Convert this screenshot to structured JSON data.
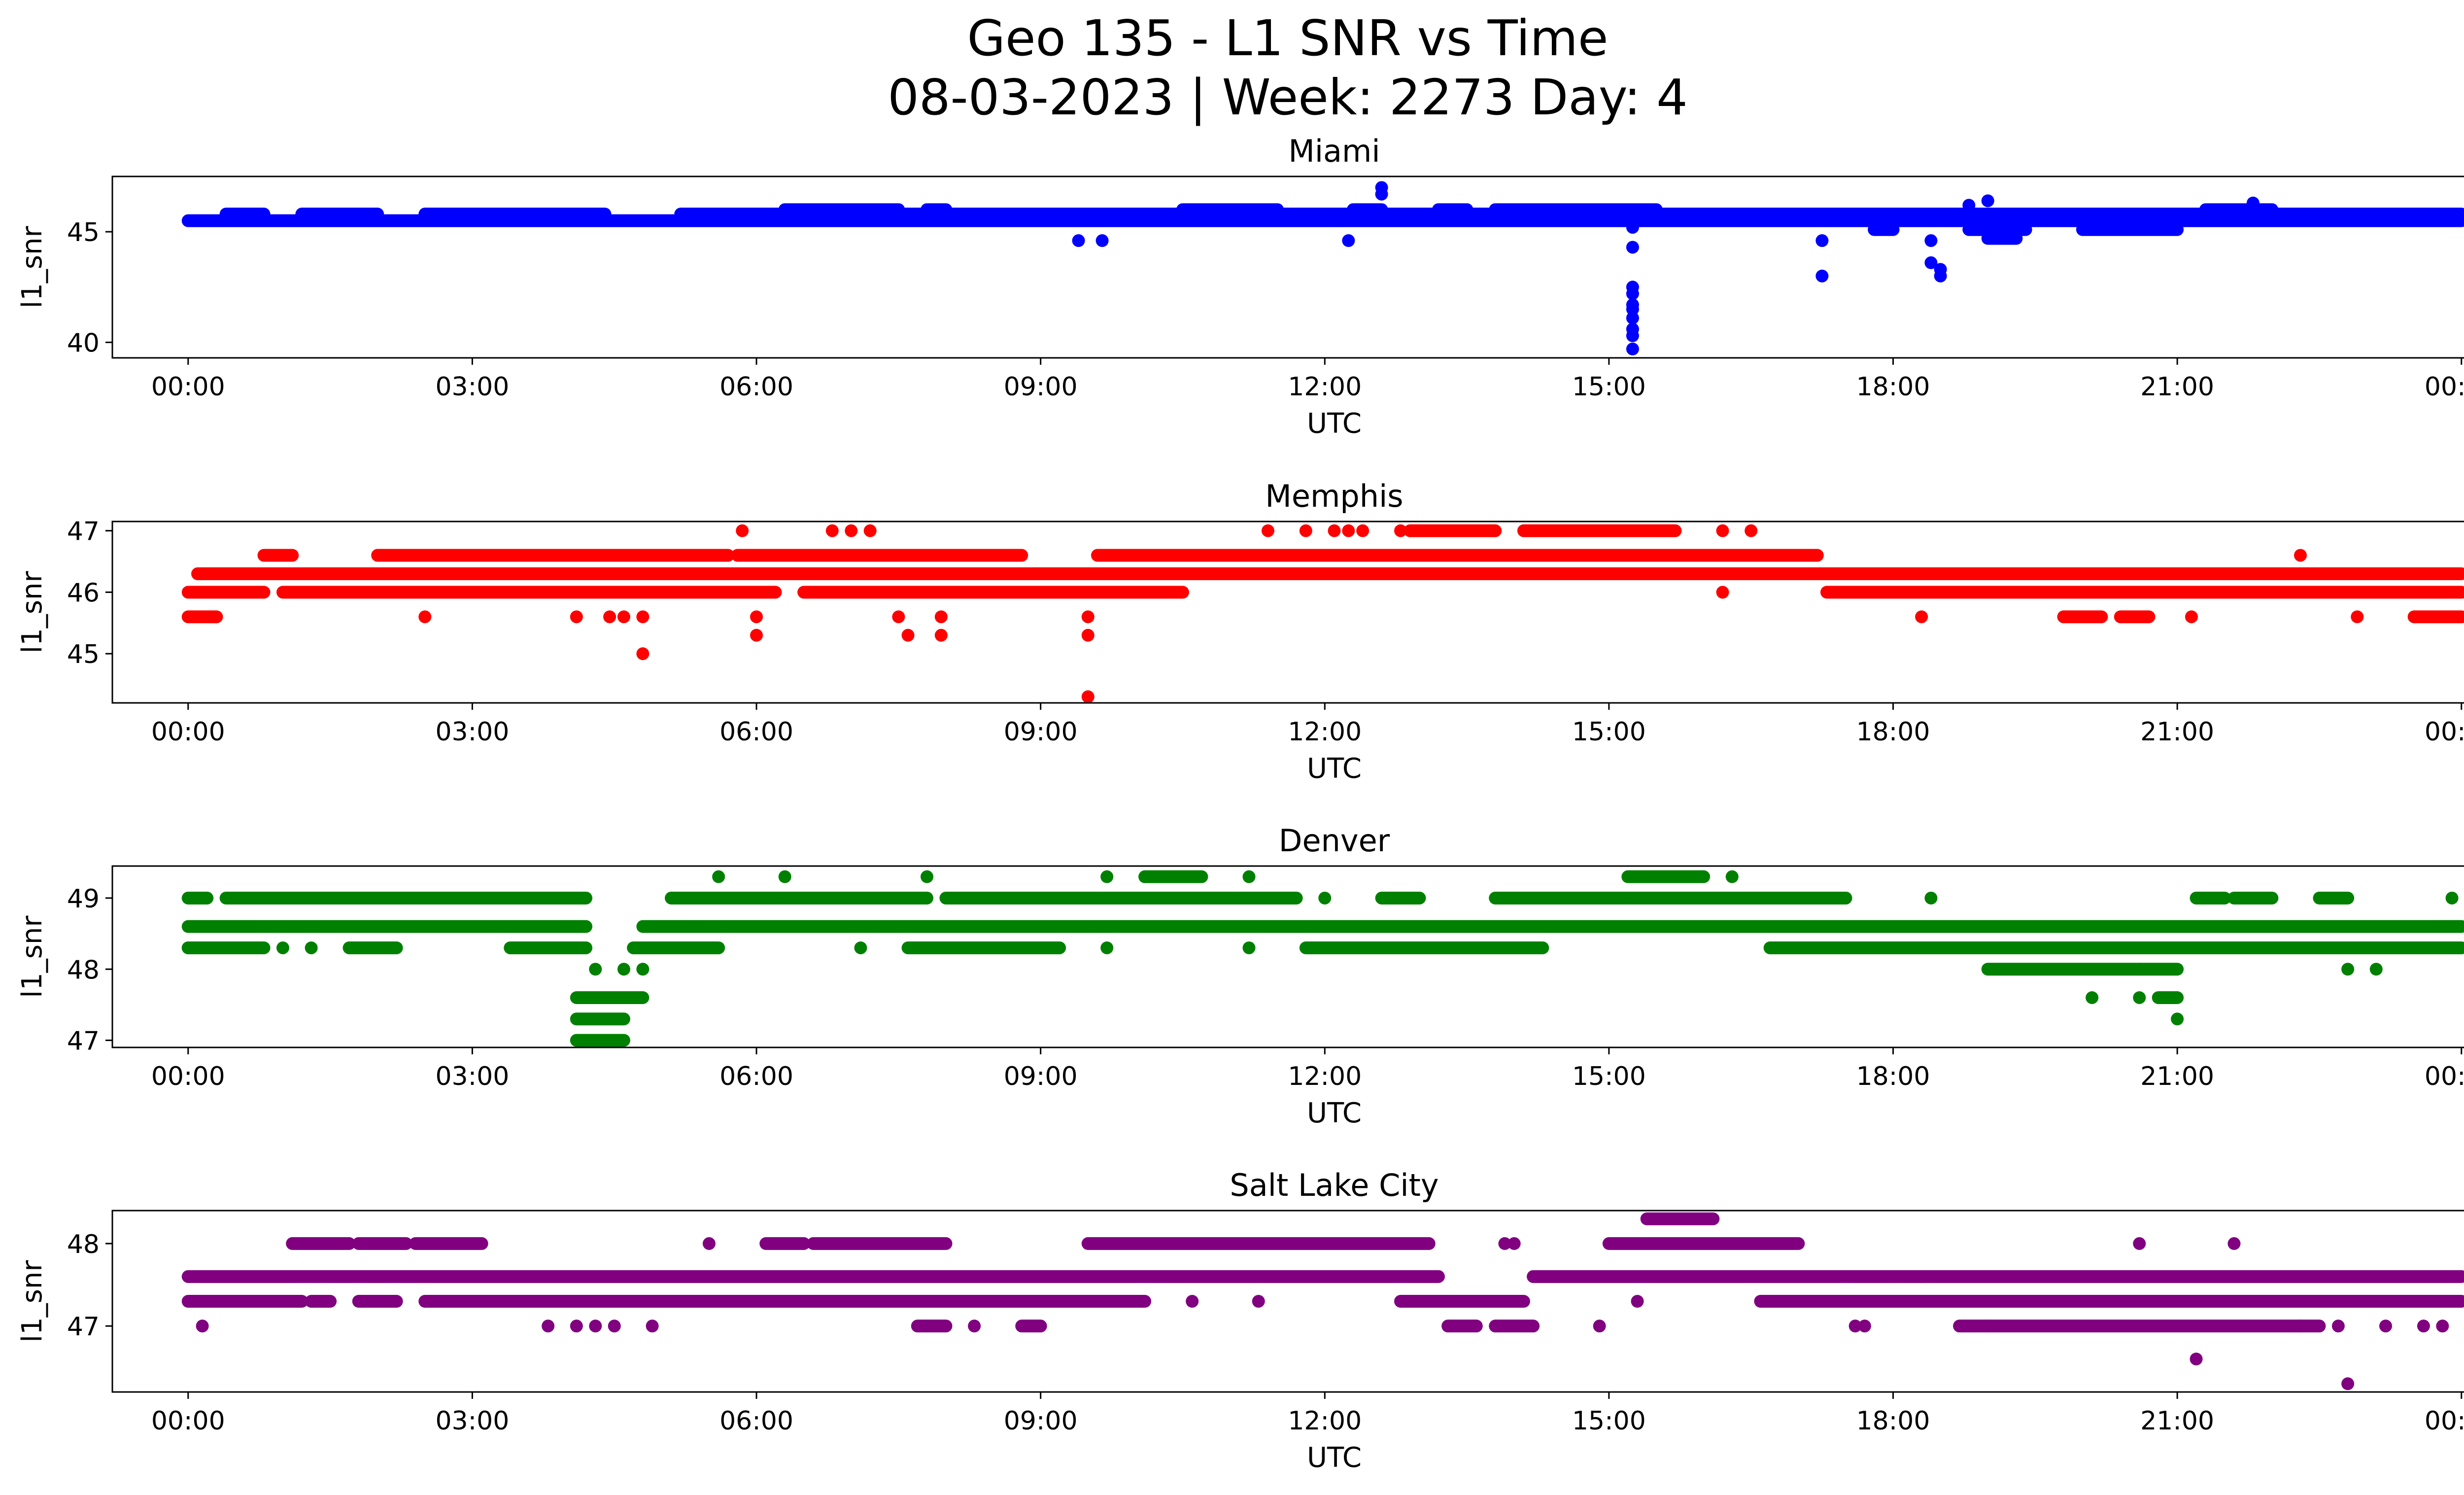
{
  "title": "Geo 135 - L1 SNR vs Time",
  "subtitle": "08-03-2023 | Week: 2273 Day: 4",
  "chart_data": [
    {
      "type": "scatter",
      "title": "Miami",
      "xlabel": "UTC",
      "ylabel": "l1_snr",
      "color": "#0000ff",
      "xlim": [
        -0.8,
        25.0
      ],
      "ylim": [
        39.3,
        47.5
      ],
      "xticks": [
        "00:00",
        "03:00",
        "06:00",
        "09:00",
        "12:00",
        "15:00",
        "18:00",
        "21:00",
        "00:00"
      ],
      "yticks": [
        40,
        45
      ],
      "bands": [
        {
          "level": 45.5,
          "segments": [
            [
              0.0,
              24.0
            ]
          ]
        },
        {
          "level": 45.8,
          "segments": [
            [
              0.4,
              0.8
            ],
            [
              1.2,
              2.0
            ],
            [
              2.5,
              4.4
            ],
            [
              5.2,
              24.0
            ]
          ]
        },
        {
          "level": 46.0,
          "segments": [
            [
              6.3,
              7.5
            ],
            [
              7.8,
              8.0
            ],
            [
              10.5,
              11.5
            ],
            [
              12.3,
              12.6
            ],
            [
              13.2,
              13.5
            ],
            [
              13.8,
              15.5
            ],
            [
              21.3,
              22.0
            ]
          ]
        },
        {
          "level": 45.1,
          "segments": [
            [
              17.8,
              18.0
            ],
            [
              18.8,
              19.4
            ],
            [
              20.0,
              21.0
            ]
          ]
        },
        {
          "level": 44.7,
          "segments": [
            [
              19.0,
              19.3
            ]
          ]
        }
      ],
      "points": [
        [
          15.25,
          39.7
        ],
        [
          15.25,
          40.3
        ],
        [
          15.25,
          40.6
        ],
        [
          15.25,
          41.1
        ],
        [
          15.25,
          41.5
        ],
        [
          15.25,
          41.7
        ],
        [
          15.25,
          42.2
        ],
        [
          15.25,
          42.5
        ],
        [
          15.25,
          44.3
        ],
        [
          15.25,
          45.2
        ],
        [
          9.4,
          44.6
        ],
        [
          9.65,
          44.6
        ],
        [
          12.25,
          44.6
        ],
        [
          12.6,
          46.7
        ],
        [
          12.6,
          47.0
        ],
        [
          17.25,
          44.6
        ],
        [
          17.25,
          43.0
        ],
        [
          18.4,
          44.6
        ],
        [
          18.4,
          43.6
        ],
        [
          18.5,
          43.3
        ],
        [
          18.5,
          43.0
        ],
        [
          18.8,
          46.2
        ],
        [
          19.0,
          46.4
        ],
        [
          21.8,
          46.3
        ]
      ]
    },
    {
      "type": "scatter",
      "title": "Memphis",
      "xlabel": "UTC",
      "ylabel": "l1_snr",
      "color": "#ff0000",
      "xlim": [
        -0.8,
        25.0
      ],
      "ylim": [
        44.2,
        47.15
      ],
      "xticks": [
        "00:00",
        "03:00",
        "06:00",
        "09:00",
        "12:00",
        "15:00",
        "18:00",
        "21:00",
        "00:00"
      ],
      "yticks": [
        45,
        46,
        47
      ],
      "bands": [
        {
          "level": 46.0,
          "segments": [
            [
              0.0,
              0.8
            ],
            [
              1.0,
              3.6
            ],
            [
              3.6,
              6.2
            ],
            [
              6.5,
              10.5
            ],
            [
              17.3,
              24.0
            ]
          ]
        },
        {
          "level": 46.3,
          "segments": [
            [
              0.1,
              24.0
            ]
          ]
        },
        {
          "level": 46.6,
          "segments": [
            [
              0.8,
              1.1
            ],
            [
              2.0,
              5.7
            ],
            [
              5.8,
              8.8
            ],
            [
              9.6,
              17.2
            ]
          ]
        },
        {
          "level": 45.6,
          "segments": [
            [
              0.0,
              0.3
            ],
            [
              19.8,
              20.2
            ],
            [
              20.4,
              20.7
            ],
            [
              23.5,
              24.0
            ]
          ]
        },
        {
          "level": 47.0,
          "segments": [
            [
              12.9,
              13.8
            ],
            [
              14.1,
              15.7
            ]
          ]
        }
      ],
      "points": [
        [
          0.25,
          45.6
        ],
        [
          2.5,
          45.6
        ],
        [
          4.1,
          45.6
        ],
        [
          4.45,
          45.6
        ],
        [
          4.6,
          45.6
        ],
        [
          4.8,
          45.6
        ],
        [
          4.8,
          45.0
        ],
        [
          6.0,
          45.6
        ],
        [
          6.0,
          45.3
        ],
        [
          7.5,
          45.6
        ],
        [
          7.6,
          45.3
        ],
        [
          7.95,
          45.6
        ],
        [
          7.95,
          45.3
        ],
        [
          9.5,
          45.6
        ],
        [
          9.5,
          45.3
        ],
        [
          9.5,
          44.3
        ],
        [
          5.85,
          47.0
        ],
        [
          6.8,
          47.0
        ],
        [
          7.0,
          47.0
        ],
        [
          7.2,
          47.0
        ],
        [
          11.4,
          47.0
        ],
        [
          11.8,
          47.0
        ],
        [
          12.1,
          47.0
        ],
        [
          12.25,
          47.0
        ],
        [
          12.4,
          47.0
        ],
        [
          12.8,
          47.0
        ],
        [
          16.2,
          47.0
        ],
        [
          16.5,
          47.0
        ],
        [
          16.2,
          46.0
        ],
        [
          18.3,
          45.6
        ],
        [
          21.15,
          45.6
        ],
        [
          22.3,
          46.6
        ],
        [
          22.9,
          45.6
        ]
      ]
    },
    {
      "type": "scatter",
      "title": "Denver",
      "xlabel": "UTC",
      "ylabel": "l1_snr",
      "color": "#008000",
      "xlim": [
        -0.8,
        25.0
      ],
      "ylim": [
        46.9,
        49.45
      ],
      "xticks": [
        "00:00",
        "03:00",
        "06:00",
        "09:00",
        "12:00",
        "15:00",
        "18:00",
        "21:00",
        "00:00"
      ],
      "yticks": [
        47,
        48,
        49
      ],
      "bands": [
        {
          "level": 49.0,
          "segments": [
            [
              0.0,
              0.2
            ],
            [
              0.4,
              4.2
            ],
            [
              5.1,
              7.8
            ],
            [
              8.0,
              11.7
            ],
            [
              12.6,
              13.0
            ],
            [
              13.8,
              17.5
            ],
            [
              21.2,
              21.5
            ],
            [
              21.6,
              22.0
            ],
            [
              22.5,
              22.8
            ]
          ]
        },
        {
          "level": 48.6,
          "segments": [
            [
              0.0,
              4.2
            ],
            [
              4.8,
              24.0
            ]
          ]
        },
        {
          "level": 48.3,
          "segments": [
            [
              0.0,
              0.5
            ],
            [
              0.5,
              0.8
            ],
            [
              1.7,
              2.2
            ],
            [
              3.4,
              4.2
            ],
            [
              4.7,
              5.6
            ],
            [
              7.6,
              8.0
            ],
            [
              8.0,
              9.2
            ],
            [
              11.8,
              14.3
            ],
            [
              16.7,
              24.0
            ]
          ]
        },
        {
          "level": 48.0,
          "segments": [
            [
              19.0,
              20.6
            ],
            [
              20.6,
              21.0
            ]
          ]
        },
        {
          "level": 47.6,
          "segments": [
            [
              4.1,
              4.8
            ],
            [
              20.8,
              21.0
            ]
          ]
        },
        {
          "level": 47.3,
          "segments": [
            [
              4.1,
              4.6
            ]
          ]
        },
        {
          "level": 47.0,
          "segments": [
            [
              4.1,
              4.6
            ]
          ]
        },
        {
          "level": 49.3,
          "segments": [
            [
              10.1,
              10.7
            ],
            [
              15.2,
              16.0
            ]
          ]
        }
      ],
      "points": [
        [
          4.3,
          48.0
        ],
        [
          4.6,
          48.0
        ],
        [
          4.8,
          48.0
        ],
        [
          5.6,
          49.3
        ],
        [
          6.3,
          49.3
        ],
        [
          7.8,
          49.3
        ],
        [
          9.7,
          49.3
        ],
        [
          11.2,
          49.3
        ],
        [
          16.3,
          49.3
        ],
        [
          7.1,
          48.3
        ],
        [
          9.7,
          48.3
        ],
        [
          11.2,
          48.3
        ],
        [
          12.0,
          49.0
        ],
        [
          17.5,
          49.0
        ],
        [
          18.4,
          49.0
        ],
        [
          20.1,
          47.6
        ],
        [
          20.6,
          47.6
        ],
        [
          21.0,
          47.3
        ],
        [
          22.8,
          48.0
        ],
        [
          23.1,
          48.0
        ],
        [
          23.9,
          49.0
        ],
        [
          0.0,
          48.3
        ],
        [
          1.0,
          48.3
        ],
        [
          1.3,
          48.3
        ]
      ]
    },
    {
      "type": "scatter",
      "title": "Salt Lake City",
      "xlabel": "UTC",
      "ylabel": "l1_snr",
      "color": "#800080",
      "xlim": [
        -0.8,
        25.0
      ],
      "ylim": [
        46.2,
        48.4
      ],
      "xticks": [
        "00:00",
        "03:00",
        "06:00",
        "09:00",
        "12:00",
        "15:00",
        "18:00",
        "21:00",
        "00:00"
      ],
      "yticks": [
        47,
        48
      ],
      "bands": [
        {
          "level": 47.6,
          "segments": [
            [
              0.0,
              13.2
            ],
            [
              14.2,
              24.0
            ]
          ]
        },
        {
          "level": 47.3,
          "segments": [
            [
              0.0,
              1.2
            ],
            [
              1.3,
              1.5
            ],
            [
              1.8,
              2.2
            ],
            [
              2.5,
              10.1
            ],
            [
              12.8,
              14.1
            ],
            [
              16.6,
              24.0
            ]
          ]
        },
        {
          "level": 48.0,
          "segments": [
            [
              1.1,
              1.7
            ],
            [
              1.8,
              2.3
            ],
            [
              2.4,
              3.1
            ],
            [
              6.1,
              6.5
            ],
            [
              6.6,
              8.0
            ],
            [
              9.5,
              13.1
            ],
            [
              15.0,
              17.0
            ]
          ]
        },
        {
          "level": 47.0,
          "segments": [
            [
              7.7,
              8.0
            ],
            [
              8.8,
              9.0
            ],
            [
              13.3,
              13.6
            ],
            [
              13.8,
              14.2
            ],
            [
              18.7,
              19.0
            ],
            [
              19.0,
              22.5
            ]
          ]
        },
        {
          "level": 48.3,
          "segments": [
            [
              15.4,
              16.1
            ]
          ]
        }
      ],
      "points": [
        [
          0.15,
          47.0
        ],
        [
          3.8,
          47.0
        ],
        [
          4.1,
          47.0
        ],
        [
          4.3,
          47.0
        ],
        [
          4.5,
          47.0
        ],
        [
          4.9,
          47.0
        ],
        [
          5.5,
          48.0
        ],
        [
          8.3,
          47.0
        ],
        [
          10.6,
          47.3
        ],
        [
          11.3,
          47.3
        ],
        [
          13.9,
          48.0
        ],
        [
          14.0,
          48.0
        ],
        [
          14.9,
          47.0
        ],
        [
          15.3,
          47.3
        ],
        [
          17.6,
          47.0
        ],
        [
          17.7,
          47.0
        ],
        [
          20.6,
          48.0
        ],
        [
          21.6,
          48.0
        ],
        [
          21.2,
          46.6
        ],
        [
          22.3,
          47.0
        ],
        [
          22.7,
          47.0
        ],
        [
          22.8,
          46.3
        ],
        [
          23.2,
          47.0
        ],
        [
          23.6,
          47.0
        ],
        [
          23.8,
          47.0
        ],
        [
          17.6,
          47.6
        ],
        [
          18.0,
          47.6
        ],
        [
          18.3,
          47.6
        ]
      ]
    }
  ]
}
